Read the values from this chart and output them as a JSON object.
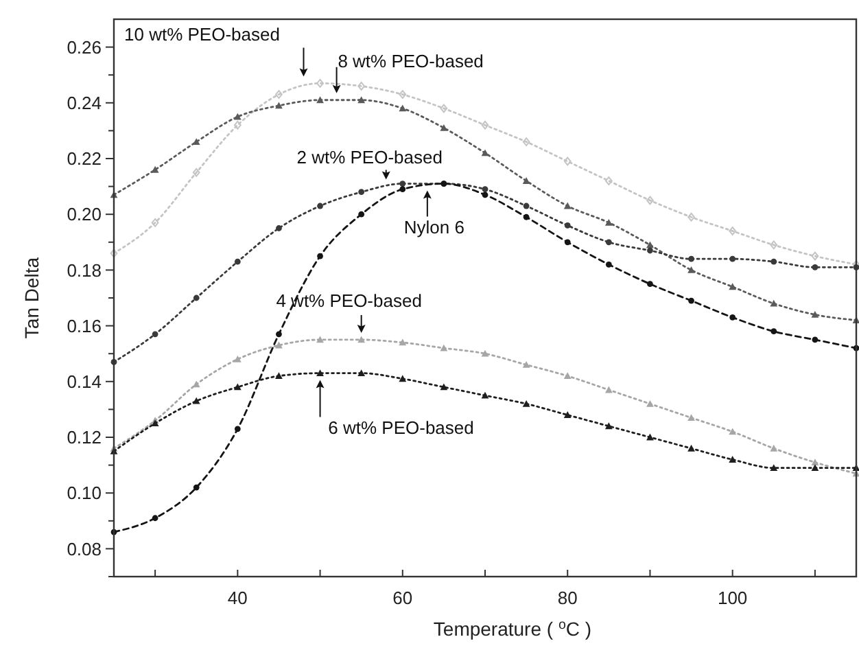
{
  "chart_data": {
    "type": "line",
    "xlabel": "Temperature ( $^{o}$C )",
    "ylabel": "Tan Delta",
    "xlim": [
      25,
      115
    ],
    "ylim": [
      0.07,
      0.27
    ],
    "xticks": [
      {
        "value": 30,
        "label": null
      },
      40,
      {
        "value": 50,
        "label": null
      },
      60,
      {
        "value": 70,
        "label": null
      },
      80,
      {
        "value": 90,
        "label": null
      },
      100,
      {
        "value": 110,
        "label": null
      }
    ],
    "yticks": [
      {
        "value": 0.07,
        "label": null
      },
      "0.08",
      {
        "value": 0.09,
        "label": null
      },
      {
        "value": 0.1,
        "label": "0.10"
      },
      {
        "value": 0.11,
        "label": null
      },
      {
        "value": 0.12,
        "label": "0.12"
      },
      {
        "value": 0.13,
        "label": null
      },
      {
        "value": 0.14,
        "label": "0.14"
      },
      {
        "value": 0.15,
        "label": null
      },
      {
        "value": 0.16,
        "label": "0.16"
      },
      {
        "value": 0.17,
        "label": null
      },
      {
        "value": 0.18,
        "label": "0.18"
      },
      {
        "value": 0.19,
        "label": null
      },
      {
        "value": 0.2,
        "label": "0.20"
      },
      {
        "value": 0.21,
        "label": null
      },
      {
        "value": 0.22,
        "label": "0.22"
      },
      {
        "value": 0.23,
        "label": null
      },
      {
        "value": 0.24,
        "label": "0.24"
      },
      {
        "value": 0.25,
        "label": null
      },
      {
        "value": 0.26,
        "label": "0.26"
      }
    ],
    "grid": false,
    "line_style": "dotted",
    "x": [
      25,
      30,
      35,
      40,
      45,
      50,
      55,
      60,
      65,
      70,
      75,
      80,
      85,
      90,
      95,
      100,
      105,
      110,
      115
    ],
    "series": [
      {
        "color": "#c4c4c4",
        "marker": "diamond",
        "values": [
          0.186,
          0.197,
          0.215,
          0.232,
          0.243,
          0.247,
          0.246,
          0.243,
          0.238,
          0.232,
          0.226,
          0.219,
          0.212,
          0.205,
          0.199,
          0.194,
          0.189,
          0.185,
          0.182
        ]
      },
      {
        "color": "#5a5a5a",
        "marker": "triangle",
        "values": [
          0.207,
          0.216,
          0.226,
          0.235,
          0.239,
          0.241,
          0.241,
          0.238,
          0.231,
          0.222,
          0.212,
          0.203,
          0.197,
          0.189,
          0.18,
          0.174,
          0.168,
          0.164,
          0.162
        ]
      },
      {
        "color": "#3a3a3a",
        "marker": "circle",
        "values": [
          0.147,
          0.157,
          0.17,
          0.183,
          0.195,
          0.203,
          0.208,
          0.211,
          0.211,
          0.209,
          0.203,
          0.196,
          0.19,
          0.187,
          0.184,
          0.184,
          0.183,
          0.181,
          0.181
        ]
      },
      {
        "color": "#151515",
        "marker": "circle",
        "line_style": "dashed",
        "values": [
          0.086,
          0.091,
          0.102,
          0.123,
          0.157,
          0.185,
          0.2,
          0.209,
          0.211,
          0.207,
          0.199,
          0.19,
          0.182,
          0.175,
          0.169,
          0.163,
          0.158,
          0.155,
          0.152
        ]
      },
      {
        "color": "#a6a6a6",
        "marker": "triangle",
        "values": [
          0.116,
          0.126,
          0.139,
          0.148,
          0.153,
          0.155,
          0.155,
          0.154,
          0.152,
          0.15,
          0.146,
          0.142,
          0.137,
          0.132,
          0.127,
          0.122,
          0.116,
          0.111,
          0.107
        ]
      },
      {
        "color": "#1e1e1e",
        "marker": "triangle",
        "values": [
          0.115,
          0.125,
          0.133,
          0.138,
          0.142,
          0.143,
          0.143,
          0.141,
          0.138,
          0.135,
          0.132,
          0.128,
          0.124,
          0.12,
          0.116,
          0.112,
          0.109,
          0.109,
          0.109
        ]
      }
    ],
    "annotations": [
      {
        "text": "10 wt% PEO-based",
        "x": 48,
        "y": 0.247
      },
      {
        "text": "8 wt% PEO-based",
        "x": 52,
        "y": 0.241
      },
      {
        "text": "2 wt% PEO-based",
        "x": 58,
        "y": 0.21
      },
      {
        "text": "Nylon 6",
        "x": 63,
        "y": 0.211
      },
      {
        "text": "4 wt% PEO-based",
        "x": 55,
        "y": 0.155
      },
      {
        "text": "6 wt% PEO-based",
        "x": 50,
        "y": 0.143
      }
    ]
  }
}
